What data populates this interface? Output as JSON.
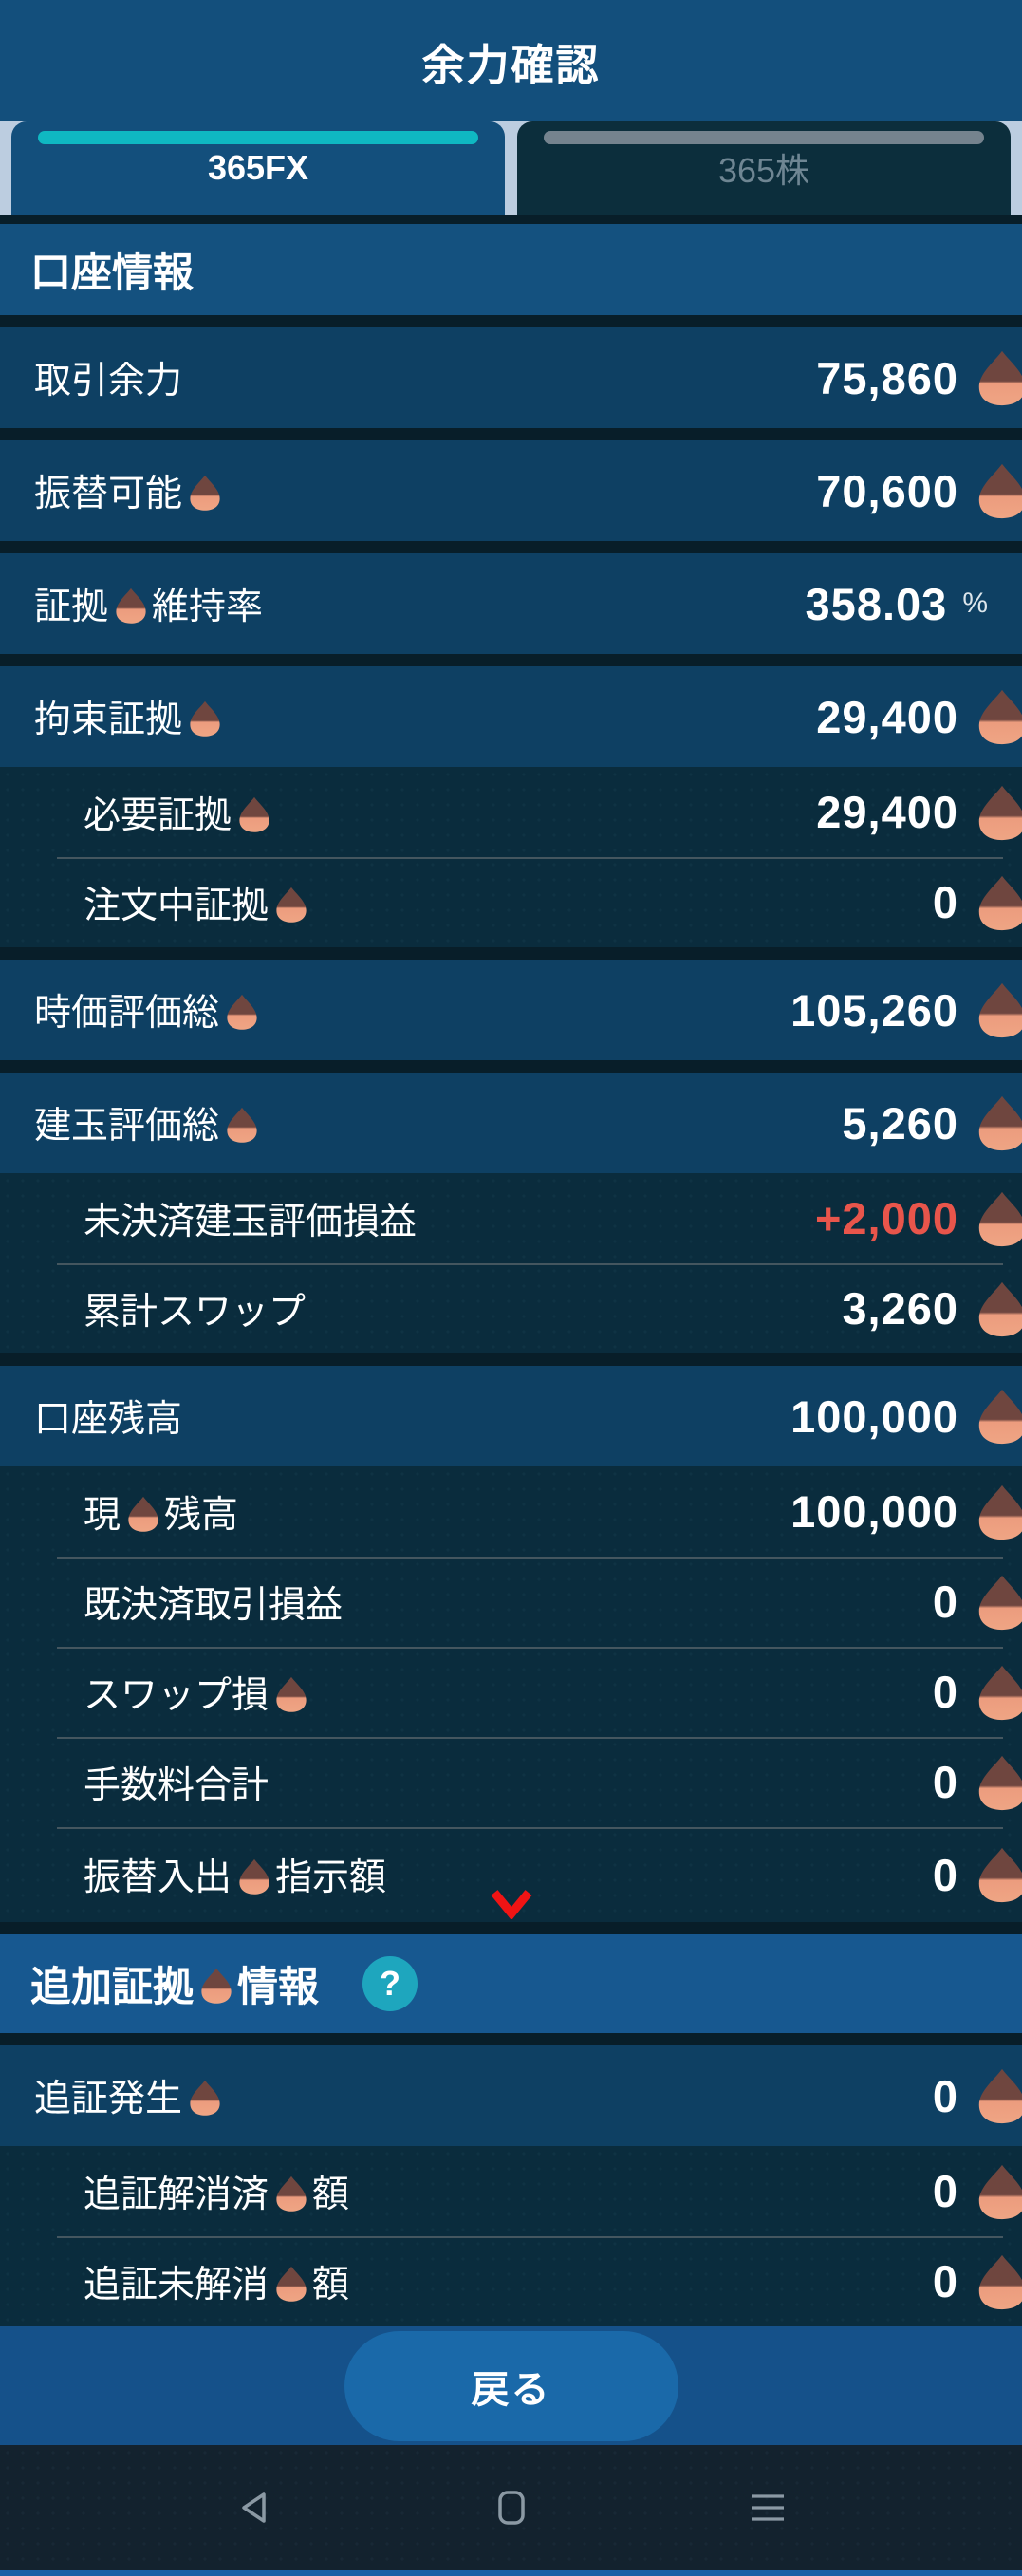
{
  "app": {
    "title": "余力確認"
  },
  "tabs": [
    {
      "label": "365FX",
      "active": true
    },
    {
      "label": "365株",
      "active": false
    }
  ],
  "kuri_token": "{kuri}",
  "groups": [
    {
      "rows": [
        {
          "kind": "section",
          "label": "口座情報"
        }
      ]
    },
    {
      "rows": [
        {
          "kind": "main",
          "label": "取引余力",
          "value": "75,860",
          "icon": "chestnut-icon"
        }
      ]
    },
    {
      "rows": [
        {
          "kind": "main",
          "label": "振替可能{kuri}",
          "value": "70,600",
          "icon": "chestnut-icon"
        }
      ]
    },
    {
      "rows": [
        {
          "kind": "main",
          "label": "証拠{kuri}維持率",
          "value": "358.03",
          "unit": "%"
        }
      ]
    },
    {
      "rows": [
        {
          "kind": "main",
          "label": "拘束証拠{kuri}",
          "value": "29,400",
          "icon": "chestnut-icon"
        },
        {
          "kind": "sub",
          "label": "必要証拠{kuri}",
          "value": "29,400",
          "icon": "chestnut-icon"
        },
        {
          "kind": "sub",
          "label": "注文中証拠{kuri}",
          "value": "0",
          "icon": "chestnut-icon"
        }
      ]
    },
    {
      "rows": [
        {
          "kind": "main",
          "label": "時価評価総{kuri}",
          "value": "105,260",
          "icon": "chestnut-icon"
        }
      ]
    },
    {
      "rows": [
        {
          "kind": "main",
          "label": "建玉評価総{kuri}",
          "value": "5,260",
          "icon": "chestnut-icon"
        },
        {
          "kind": "sub",
          "label": "未決済建玉評価損益",
          "value": "+2,000",
          "value_color": "#E8554B",
          "icon": "chestnut-icon"
        },
        {
          "kind": "sub",
          "label": "累計スワップ",
          "value": "3,260",
          "icon": "chestnut-icon"
        }
      ]
    },
    {
      "rows": [
        {
          "kind": "main",
          "label": "口座残高",
          "value": "100,000",
          "icon": "chestnut-icon"
        },
        {
          "kind": "sub",
          "label": "現{kuri}残高",
          "value": "100,000",
          "icon": "chestnut-icon"
        },
        {
          "kind": "sub",
          "label": "既決済取引損益",
          "value": "0",
          "icon": "chestnut-icon"
        },
        {
          "kind": "sub",
          "label": "スワップ損{kuri}",
          "value": "0",
          "icon": "chestnut-icon"
        },
        {
          "kind": "sub",
          "label": "手数料合計",
          "value": "0",
          "icon": "chestnut-icon"
        },
        {
          "kind": "sub",
          "label": "振替入出{kuri}指示額",
          "value": "0",
          "icon": "chestnut-icon",
          "chevron": "chevron-down-icon",
          "tall": true
        }
      ]
    },
    {
      "rows": [
        {
          "kind": "section2",
          "label": "追加証拠{kuri}情報",
          "help": "?"
        }
      ]
    },
    {
      "rows": [
        {
          "kind": "main",
          "label": "追証発生{kuri}",
          "value": "0",
          "icon": "chestnut-icon"
        },
        {
          "kind": "sub",
          "label": "追証解消済{kuri}額",
          "value": "0",
          "icon": "chestnut-icon"
        },
        {
          "kind": "sub",
          "label": "追証未解消{kuri}額",
          "value": "0",
          "icon": "chestnut-icon"
        }
      ]
    }
  ],
  "footer": {
    "back_label": "戻る"
  },
  "navbar": {
    "icons": [
      "back-nav-icon",
      "home-nav-icon",
      "menu-nav-icon"
    ]
  },
  "colors": {
    "header_bg": "#134F7C",
    "tabstrip_bg": "#BCCDE0",
    "tab_active_indicator": "#0FB8C2",
    "tab_inactive_indicator": "#75838E",
    "section_bg": "#14517F",
    "section2_bg": "#175890",
    "row_bg": "#0E4063",
    "subrow_bg": "#0A2C3D",
    "divider": "#081E29",
    "value_positive_red": "#E8554B",
    "chevron_red": "#F01414",
    "help_teal": "#1EA6BE",
    "footer_bg": "#15518A",
    "button_bg": "#1A69A9",
    "nav_bg": "#13222E",
    "nav_icon": "#8B99A4",
    "bottom_strip": "#1C5FA6",
    "chestnut_top": "#6F463F",
    "chestnut_bottom": "#EDA07F"
  }
}
